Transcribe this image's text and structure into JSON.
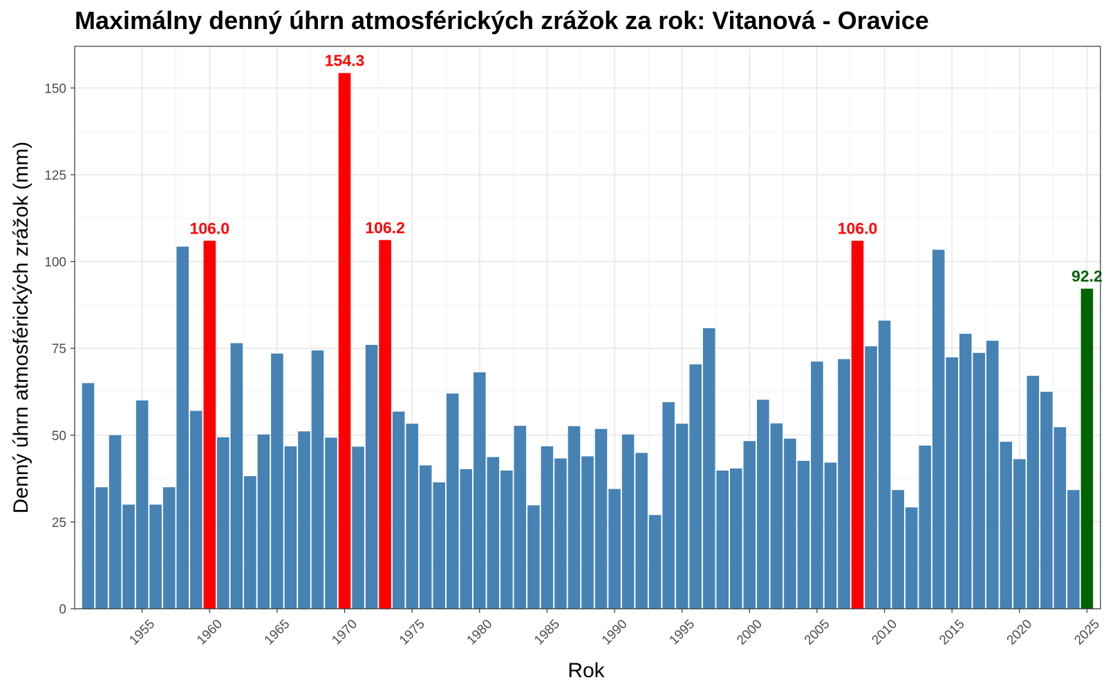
{
  "chart_data": {
    "type": "bar",
    "title": "Maximálny denný úhrn atmosférických zrážok za rok: Vitanová - Oravice",
    "xlabel": "Rok",
    "ylabel": "Denný úhrn atmosférických zrážok (mm)",
    "ylim": [
      0,
      162
    ],
    "yticks": [
      0,
      25,
      50,
      75,
      100,
      125,
      150
    ],
    "xticks": [
      1955,
      1960,
      1965,
      1970,
      1975,
      1980,
      1985,
      1990,
      1995,
      2000,
      2005,
      2010,
      2015,
      2020,
      2025
    ],
    "xlim": [
      1950,
      2026
    ],
    "grid": true,
    "legend": "none",
    "colors": {
      "default": "#4682b4",
      "record": "#ff0000",
      "latest": "#006400"
    },
    "x": [
      1951,
      1952,
      1953,
      1954,
      1955,
      1956,
      1957,
      1958,
      1959,
      1960,
      1961,
      1962,
      1963,
      1964,
      1965,
      1966,
      1967,
      1968,
      1969,
      1970,
      1971,
      1972,
      1973,
      1974,
      1975,
      1976,
      1977,
      1978,
      1979,
      1980,
      1981,
      1982,
      1983,
      1984,
      1985,
      1986,
      1987,
      1988,
      1989,
      1990,
      1991,
      1992,
      1993,
      1994,
      1995,
      1996,
      1997,
      1998,
      1999,
      2000,
      2001,
      2002,
      2003,
      2004,
      2005,
      2006,
      2007,
      2008,
      2009,
      2010,
      2011,
      2012,
      2013,
      2014,
      2015,
      2016,
      2017,
      2018,
      2019,
      2020,
      2021,
      2022,
      2023,
      2024,
      2025
    ],
    "values": [
      65.0,
      35.0,
      50.0,
      30.0,
      60.0,
      30.0,
      35.0,
      104.3,
      57.0,
      106.0,
      49.4,
      76.5,
      38.2,
      50.2,
      73.5,
      46.8,
      51.1,
      74.4,
      49.3,
      154.3,
      46.7,
      76.0,
      106.2,
      56.8,
      53.3,
      41.3,
      36.4,
      62.0,
      40.2,
      68.1,
      43.7,
      39.8,
      52.7,
      29.8,
      46.8,
      43.3,
      52.6,
      43.9,
      51.8,
      34.5,
      50.2,
      44.9,
      27.0,
      59.5,
      53.3,
      70.4,
      80.8,
      39.8,
      40.4,
      48.3,
      60.2,
      53.4,
      49.0,
      42.6,
      71.2,
      42.1,
      71.9,
      106.0,
      75.6,
      83.0,
      34.2,
      29.2,
      47.0,
      103.4,
      72.4,
      79.2,
      73.7,
      77.2,
      48.1,
      43.1,
      67.1,
      62.5,
      52.3,
      34.2,
      92.2
    ],
    "highlights": [
      {
        "year": 1960,
        "value": 106.0,
        "label": "106.0",
        "kind": "record"
      },
      {
        "year": 1970,
        "value": 154.3,
        "label": "154.3",
        "kind": "record"
      },
      {
        "year": 1973,
        "value": 106.2,
        "label": "106.2",
        "kind": "record"
      },
      {
        "year": 2008,
        "value": 106.0,
        "label": "106.0",
        "kind": "record"
      },
      {
        "year": 2025,
        "value": 92.2,
        "label": "92.2",
        "kind": "latest"
      }
    ]
  }
}
